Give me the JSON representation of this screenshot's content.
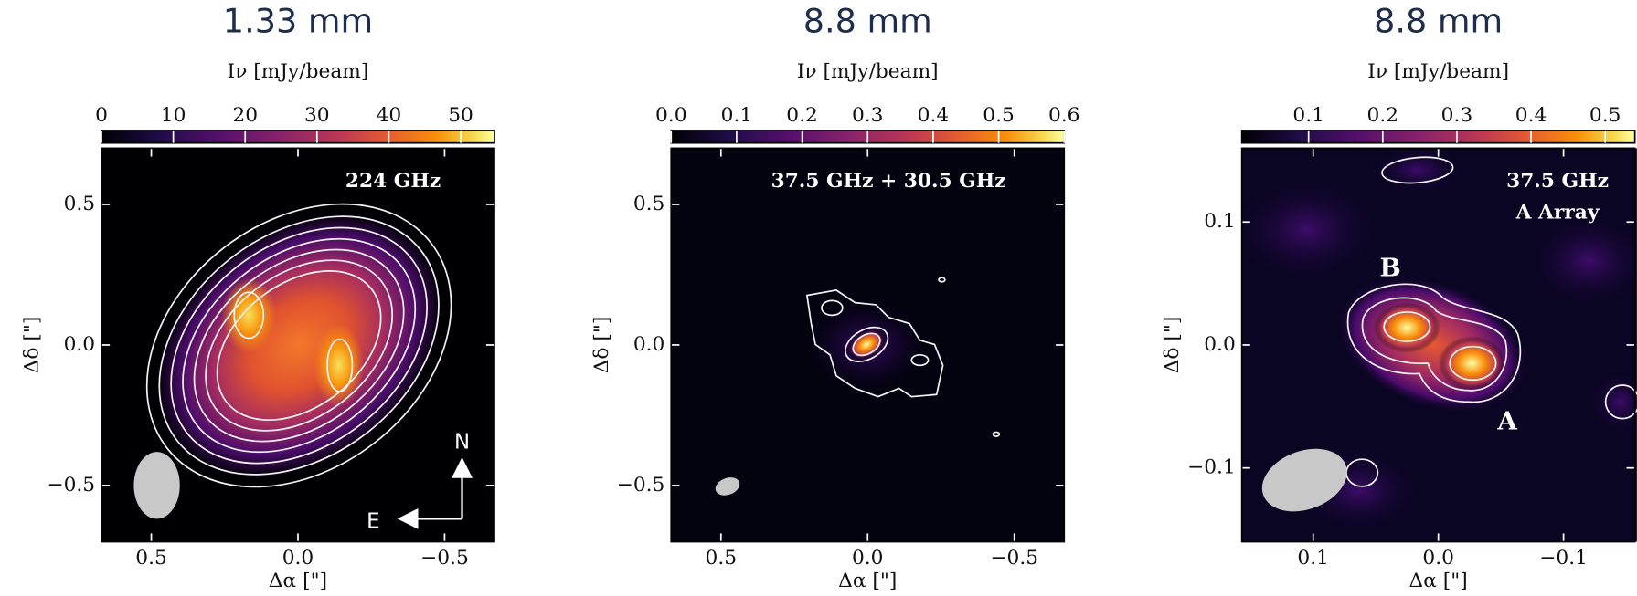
{
  "chart_data": [
    {
      "type": "image",
      "title": "1.33 mm",
      "colorbar_label": "Iν [mJy/beam]",
      "colormap": "inferno",
      "clim": [
        0,
        54.7
      ],
      "cticks": [
        0,
        10,
        20,
        30,
        40,
        50
      ],
      "xlabel": "Δα [\"]",
      "ylabel": "Δδ [\"]",
      "xlim": [
        0.67,
        -0.67
      ],
      "xticks": [
        0.5,
        {
          "value": 0,
          "label": "0.0"
        },
        {
          "value": -0.5,
          "label": "−0.5"
        }
      ],
      "ylim": [
        -0.7,
        0.7
      ],
      "yticks": [
        0.5,
        {
          "value": 0,
          "label": "0.0"
        },
        {
          "value": -0.5,
          "label": "−0.5"
        }
      ],
      "annotations": [
        "224 GHz",
        "N",
        "E"
      ]
    },
    {
      "type": "image",
      "title": "8.8 mm",
      "colorbar_label": "Iν [mJy/beam]",
      "colormap": "inferno",
      "clim": [
        0,
        0.6
      ],
      "cticks": [
        {
          "value": 0,
          "label": "0.0"
        },
        0.1,
        0.2,
        0.3,
        0.4,
        0.5,
        0.6
      ],
      "xlabel": "Δα [\"]",
      "ylabel": "Δδ [\"]",
      "xlim": [
        0.67,
        -0.67
      ],
      "xticks": [
        0.5,
        {
          "value": 0,
          "label": "0.0"
        },
        {
          "value": -0.5,
          "label": "−0.5"
        }
      ],
      "ylim": [
        -0.7,
        0.7
      ],
      "yticks": [
        0.5,
        {
          "value": 0,
          "label": "0.0"
        },
        {
          "value": -0.5,
          "label": "−0.5"
        }
      ],
      "annotations": [
        "37.5 GHz + 30.5 GHz"
      ]
    },
    {
      "type": "image",
      "title": "8.8 mm",
      "colorbar_label": "Iν [mJy/beam]",
      "colormap": "inferno",
      "clim": [
        0.01,
        0.54
      ],
      "cticks": [
        0.1,
        0.2,
        0.3,
        0.4,
        0.5
      ],
      "xlabel": "Δα [\"]",
      "ylabel": "Δδ [\"]",
      "xlim": [
        0.157,
        -0.157
      ],
      "xticks": [
        0.1,
        {
          "value": 0,
          "label": "0.0"
        },
        {
          "value": -0.1,
          "label": "−0.1"
        }
      ],
      "ylim": [
        -0.16,
        0.16
      ],
      "yticks": [
        0.1,
        {
          "value": 0,
          "label": "0.0"
        },
        {
          "value": -0.1,
          "label": "−0.1"
        }
      ],
      "annotations": [
        "37.5 GHz",
        "A Array",
        "B",
        "A"
      ]
    }
  ]
}
